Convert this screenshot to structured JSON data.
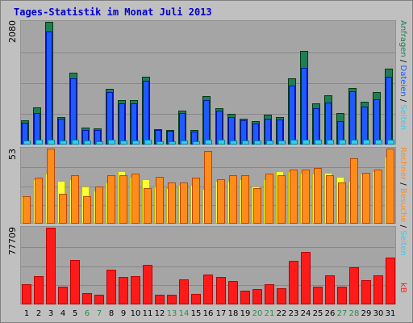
{
  "title": "Tages-Statistik im Monat Juli 2013",
  "chart_data": [
    {
      "type": "bar",
      "panel": "top",
      "max_label": "2080",
      "ylim": [
        0,
        2080
      ],
      "categories": [
        "1",
        "2",
        "3",
        "4",
        "5",
        "6",
        "7",
        "8",
        "9",
        "10",
        "11",
        "12",
        "13",
        "14",
        "15",
        "16",
        "17",
        "18",
        "19",
        "20",
        "21",
        "22",
        "23",
        "24",
        "25",
        "26",
        "27",
        "28",
        "29",
        "30",
        "31"
      ],
      "series": [
        {
          "name": "Anfragen",
          "color": "#1e7e54",
          "values": [
            400,
            620,
            2080,
            460,
            1210,
            280,
            255,
            930,
            750,
            740,
            1150,
            250,
            240,
            560,
            230,
            810,
            600,
            510,
            430,
            380,
            490,
            460,
            1120,
            1580,
            690,
            830,
            530,
            950,
            710,
            880,
            1280
          ]
        },
        {
          "name": "Dateien",
          "color": "#1e5aff",
          "values": [
            360,
            530,
            1910,
            430,
            1110,
            240,
            230,
            880,
            690,
            690,
            1070,
            230,
            220,
            520,
            210,
            740,
            560,
            450,
            400,
            340,
            430,
            420,
            990,
            1290,
            600,
            700,
            380,
            900,
            630,
            760,
            1150
          ]
        },
        {
          "name": "Seiten",
          "color": "#33ccee",
          "values": [
            60,
            70,
            75,
            60,
            65,
            50,
            45,
            65,
            60,
            60,
            65,
            45,
            45,
            55,
            45,
            70,
            65,
            60,
            60,
            55,
            60,
            55,
            70,
            75,
            65,
            70,
            70,
            70,
            65,
            65,
            70
          ]
        }
      ],
      "legend": [
        "Anfragen",
        "Dateien",
        "Seiten"
      ]
    },
    {
      "type": "bar",
      "panel": "middle",
      "max_label": "53",
      "ylim": [
        0,
        53
      ],
      "categories": [
        "1",
        "2",
        "3",
        "4",
        "5",
        "6",
        "7",
        "8",
        "9",
        "10",
        "11",
        "12",
        "13",
        "14",
        "15",
        "16",
        "17",
        "18",
        "19",
        "20",
        "21",
        "22",
        "23",
        "24",
        "25",
        "26",
        "27",
        "28",
        "29",
        "30",
        "31"
      ],
      "series": [
        {
          "name": "Besuche",
          "color": "#ffff33",
          "values": [
            19,
            31,
            35,
            30,
            31,
            26,
            23,
            29,
            37,
            33,
            31,
            26,
            25,
            27,
            27,
            24,
            30,
            30,
            31,
            26,
            31,
            37,
            37,
            36,
            35,
            36,
            33,
            30,
            35,
            37,
            47
          ]
        },
        {
          "name": "Rechner",
          "color": "#ff8c1a",
          "values": [
            19,
            32,
            53,
            21,
            34,
            19,
            26,
            34,
            34,
            35,
            25,
            33,
            29,
            29,
            32,
            51,
            31,
            34,
            34,
            25,
            35,
            34,
            38,
            38,
            39,
            34,
            29,
            46,
            36,
            38,
            53
          ]
        }
      ],
      "legend": [
        "Rechner",
        "Besuche"
      ]
    },
    {
      "type": "bar",
      "panel": "bottom",
      "max_label": "77709",
      "ylim": [
        0,
        77709
      ],
      "categories": [
        "1",
        "2",
        "3",
        "4",
        "5",
        "6",
        "7",
        "8",
        "9",
        "10",
        "11",
        "12",
        "13",
        "14",
        "15",
        "16",
        "17",
        "18",
        "19",
        "20",
        "21",
        "22",
        "23",
        "24",
        "25",
        "26",
        "27",
        "28",
        "29",
        "30",
        "31"
      ],
      "series": [
        {
          "name": "kB",
          "color": "#ff1a1a",
          "values": [
            20000,
            28000,
            77709,
            17000,
            45000,
            11000,
            9500,
            35000,
            27000,
            28500,
            40000,
            9500,
            9500,
            25000,
            10000,
            30000,
            27000,
            23000,
            13500,
            14500,
            20000,
            16000,
            44000,
            53000,
            17000,
            29000,
            17000,
            37000,
            24000,
            29000,
            47000
          ]
        }
      ],
      "legend": [
        "kB"
      ]
    }
  ],
  "days": [
    {
      "label": "1",
      "weekend": false
    },
    {
      "label": "2",
      "weekend": false
    },
    {
      "label": "3",
      "weekend": false
    },
    {
      "label": "4",
      "weekend": false
    },
    {
      "label": "5",
      "weekend": false
    },
    {
      "label": "6",
      "weekend": true
    },
    {
      "label": "7",
      "weekend": true
    },
    {
      "label": "8",
      "weekend": false
    },
    {
      "label": "9",
      "weekend": false
    },
    {
      "label": "10",
      "weekend": false
    },
    {
      "label": "11",
      "weekend": false
    },
    {
      "label": "12",
      "weekend": false
    },
    {
      "label": "13",
      "weekend": true
    },
    {
      "label": "14",
      "weekend": true
    },
    {
      "label": "15",
      "weekend": false
    },
    {
      "label": "16",
      "weekend": false
    },
    {
      "label": "17",
      "weekend": false
    },
    {
      "label": "18",
      "weekend": false
    },
    {
      "label": "19",
      "weekend": false
    },
    {
      "label": "20",
      "weekend": true
    },
    {
      "label": "21",
      "weekend": true
    },
    {
      "label": "22",
      "weekend": false
    },
    {
      "label": "23",
      "weekend": false
    },
    {
      "label": "24",
      "weekend": false
    },
    {
      "label": "25",
      "weekend": false
    },
    {
      "label": "26",
      "weekend": false
    },
    {
      "label": "27",
      "weekend": true
    },
    {
      "label": "28",
      "weekend": true
    },
    {
      "label": "29",
      "weekend": false
    },
    {
      "label": "30",
      "weekend": false
    },
    {
      "label": "31",
      "weekend": false
    }
  ],
  "colors": {
    "panel_bg": "#a5a5a5",
    "gridline": "#888888",
    "background": "#c0c0c0",
    "title": "#0000cc",
    "weekend_label": "#2c8c4c",
    "legend_separator": "#000000"
  }
}
